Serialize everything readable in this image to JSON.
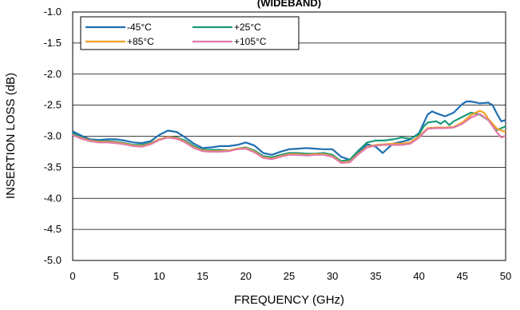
{
  "chart_data": {
    "type": "line",
    "title": "(WIDEBAND)",
    "xlabel": "FREQUENCY (GHz)",
    "ylabel": "INSERTION LOSS (dB)",
    "xlim": [
      0,
      50
    ],
    "ylim": [
      -5.0,
      -1.0
    ],
    "xticks": [
      0,
      5,
      10,
      15,
      20,
      25,
      30,
      35,
      40,
      45,
      50
    ],
    "yticks": [
      -1.0,
      -1.5,
      -2.0,
      -2.5,
      -3.0,
      -3.5,
      -4.0,
      -4.5,
      -5.0
    ],
    "xtick_labels": [
      "0",
      "5",
      "10",
      "15",
      "20",
      "25",
      "30",
      "35",
      "40",
      "45",
      "50"
    ],
    "ytick_labels": [
      "-1.0",
      "-1.5",
      "-2.0",
      "-2.5",
      "-3.0",
      "-3.5",
      "-4.0",
      "-4.5",
      "-5.0"
    ],
    "grid": true,
    "legend_position": "top-left",
    "series": [
      {
        "name": "-45°C",
        "color": "#1f6eb1",
        "points": [
          [
            0,
            -2.92
          ],
          [
            1,
            -2.99
          ],
          [
            2,
            -3.05
          ],
          [
            3,
            -3.06
          ],
          [
            4,
            -3.05
          ],
          [
            5,
            -3.05
          ],
          [
            6,
            -3.07
          ],
          [
            7,
            -3.1
          ],
          [
            8,
            -3.11
          ],
          [
            9,
            -3.08
          ],
          [
            10,
            -2.98
          ],
          [
            11,
            -2.91
          ],
          [
            12,
            -2.93
          ],
          [
            13,
            -3.02
          ],
          [
            14,
            -3.12
          ],
          [
            15,
            -3.19
          ],
          [
            16,
            -3.18
          ],
          [
            17,
            -3.16
          ],
          [
            18,
            -3.16
          ],
          [
            19,
            -3.14
          ],
          [
            20,
            -3.1
          ],
          [
            21,
            -3.15
          ],
          [
            22,
            -3.27
          ],
          [
            23,
            -3.3
          ],
          [
            24,
            -3.25
          ],
          [
            25,
            -3.21
          ],
          [
            26,
            -3.2
          ],
          [
            27,
            -3.19
          ],
          [
            28,
            -3.2
          ],
          [
            29,
            -3.21
          ],
          [
            30,
            -3.21
          ],
          [
            31,
            -3.33
          ],
          [
            32,
            -3.38
          ],
          [
            33,
            -3.26
          ],
          [
            34,
            -3.13
          ],
          [
            35,
            -3.17
          ],
          [
            35.8,
            -3.27
          ],
          [
            36.5,
            -3.18
          ],
          [
            37,
            -3.12
          ],
          [
            38,
            -3.09
          ],
          [
            39,
            -3.05
          ],
          [
            40,
            -2.95
          ],
          [
            40.5,
            -2.8
          ],
          [
            41,
            -2.65
          ],
          [
            41.5,
            -2.6
          ],
          [
            42,
            -2.63
          ],
          [
            43,
            -2.68
          ],
          [
            44,
            -2.62
          ],
          [
            45,
            -2.48
          ],
          [
            45.5,
            -2.44
          ],
          [
            46,
            -2.44
          ],
          [
            47,
            -2.47
          ],
          [
            48,
            -2.46
          ],
          [
            48.5,
            -2.5
          ],
          [
            49,
            -2.64
          ],
          [
            49.5,
            -2.76
          ],
          [
            50,
            -2.74
          ]
        ]
      },
      {
        "name": "+25°C",
        "color": "#1a9a7a",
        "points": [
          [
            0,
            -2.95
          ],
          [
            1,
            -3.02
          ],
          [
            2,
            -3.07
          ],
          [
            3,
            -3.08
          ],
          [
            4,
            -3.08
          ],
          [
            5,
            -3.09
          ],
          [
            6,
            -3.11
          ],
          [
            7,
            -3.14
          ],
          [
            8,
            -3.14
          ],
          [
            9,
            -3.11
          ],
          [
            10,
            -3.05
          ],
          [
            11,
            -3.01
          ],
          [
            12,
            -3.02
          ],
          [
            13,
            -3.07
          ],
          [
            14,
            -3.16
          ],
          [
            15,
            -3.22
          ],
          [
            16,
            -3.22
          ],
          [
            17,
            -3.22
          ],
          [
            18,
            -3.23
          ],
          [
            19,
            -3.2
          ],
          [
            20,
            -3.18
          ],
          [
            21,
            -3.23
          ],
          [
            22,
            -3.32
          ],
          [
            23,
            -3.34
          ],
          [
            24,
            -3.3
          ],
          [
            25,
            -3.27
          ],
          [
            26,
            -3.27
          ],
          [
            27,
            -3.28
          ],
          [
            28,
            -3.28
          ],
          [
            29,
            -3.27
          ],
          [
            30,
            -3.3
          ],
          [
            31,
            -3.4
          ],
          [
            32,
            -3.38
          ],
          [
            33,
            -3.23
          ],
          [
            34,
            -3.1
          ],
          [
            35,
            -3.07
          ],
          [
            36,
            -3.07
          ],
          [
            37,
            -3.05
          ],
          [
            38,
            -3.02
          ],
          [
            39,
            -3.04
          ],
          [
            40,
            -2.97
          ],
          [
            40.5,
            -2.85
          ],
          [
            41,
            -2.78
          ],
          [
            42,
            -2.76
          ],
          [
            42.5,
            -2.8
          ],
          [
            43,
            -2.75
          ],
          [
            43.5,
            -2.82
          ],
          [
            44,
            -2.76
          ],
          [
            45,
            -2.69
          ],
          [
            46,
            -2.62
          ],
          [
            47,
            -2.65
          ],
          [
            48,
            -2.74
          ],
          [
            49,
            -2.9
          ],
          [
            50,
            -2.84
          ]
        ]
      },
      {
        "name": "+85°C",
        "color": "#f0a020",
        "points": [
          [
            0,
            -2.98
          ],
          [
            1,
            -3.03
          ],
          [
            2,
            -3.07
          ],
          [
            3,
            -3.09
          ],
          [
            4,
            -3.09
          ],
          [
            5,
            -3.1
          ],
          [
            6,
            -3.12
          ],
          [
            7,
            -3.15
          ],
          [
            8,
            -3.16
          ],
          [
            9,
            -3.12
          ],
          [
            10,
            -3.05
          ],
          [
            11,
            -3.01
          ],
          [
            12,
            -3.03
          ],
          [
            13,
            -3.09
          ],
          [
            14,
            -3.18
          ],
          [
            15,
            -3.23
          ],
          [
            16,
            -3.24
          ],
          [
            17,
            -3.24
          ],
          [
            18,
            -3.23
          ],
          [
            19,
            -3.2
          ],
          [
            20,
            -3.19
          ],
          [
            21,
            -3.25
          ],
          [
            22,
            -3.34
          ],
          [
            23,
            -3.36
          ],
          [
            24,
            -3.32
          ],
          [
            25,
            -3.29
          ],
          [
            26,
            -3.29
          ],
          [
            27,
            -3.3
          ],
          [
            28,
            -3.29
          ],
          [
            29,
            -3.29
          ],
          [
            30,
            -3.32
          ],
          [
            31,
            -3.42
          ],
          [
            32,
            -3.41
          ],
          [
            33,
            -3.28
          ],
          [
            34,
            -3.17
          ],
          [
            35,
            -3.14
          ],
          [
            36,
            -3.13
          ],
          [
            37,
            -3.12
          ],
          [
            38,
            -3.12
          ],
          [
            39,
            -3.1
          ],
          [
            40,
            -3.0
          ],
          [
            41,
            -2.87
          ],
          [
            42,
            -2.86
          ],
          [
            43,
            -2.86
          ],
          [
            44,
            -2.85
          ],
          [
            45,
            -2.78
          ],
          [
            46,
            -2.66
          ],
          [
            47,
            -2.59
          ],
          [
            47.5,
            -2.62
          ],
          [
            48,
            -2.72
          ],
          [
            49,
            -2.88
          ],
          [
            50,
            -2.93
          ]
        ]
      },
      {
        "name": "+105°C",
        "color": "#e07aa8",
        "points": [
          [
            0,
            -2.98
          ],
          [
            1,
            -3.04
          ],
          [
            2,
            -3.08
          ],
          [
            3,
            -3.1
          ],
          [
            4,
            -3.1
          ],
          [
            5,
            -3.11
          ],
          [
            6,
            -3.13
          ],
          [
            7,
            -3.16
          ],
          [
            8,
            -3.17
          ],
          [
            9,
            -3.13
          ],
          [
            10,
            -3.06
          ],
          [
            11,
            -3.02
          ],
          [
            12,
            -3.04
          ],
          [
            13,
            -3.1
          ],
          [
            14,
            -3.19
          ],
          [
            15,
            -3.24
          ],
          [
            16,
            -3.25
          ],
          [
            17,
            -3.25
          ],
          [
            18,
            -3.24
          ],
          [
            19,
            -3.21
          ],
          [
            20,
            -3.2
          ],
          [
            21,
            -3.26
          ],
          [
            22,
            -3.35
          ],
          [
            23,
            -3.37
          ],
          [
            24,
            -3.33
          ],
          [
            25,
            -3.3
          ],
          [
            26,
            -3.3
          ],
          [
            27,
            -3.31
          ],
          [
            28,
            -3.3
          ],
          [
            29,
            -3.3
          ],
          [
            30,
            -3.33
          ],
          [
            31,
            -3.43
          ],
          [
            32,
            -3.42
          ],
          [
            33,
            -3.29
          ],
          [
            34,
            -3.18
          ],
          [
            35,
            -3.15
          ],
          [
            36,
            -3.14
          ],
          [
            37,
            -3.14
          ],
          [
            38,
            -3.14
          ],
          [
            39,
            -3.12
          ],
          [
            40,
            -3.02
          ],
          [
            41,
            -2.88
          ],
          [
            42,
            -2.87
          ],
          [
            43,
            -2.87
          ],
          [
            44,
            -2.86
          ],
          [
            45,
            -2.8
          ],
          [
            46,
            -2.7
          ],
          [
            47,
            -2.64
          ],
          [
            48,
            -2.74
          ],
          [
            49,
            -2.94
          ],
          [
            49.5,
            -3.02
          ],
          [
            50,
            -2.99
          ]
        ]
      }
    ]
  }
}
